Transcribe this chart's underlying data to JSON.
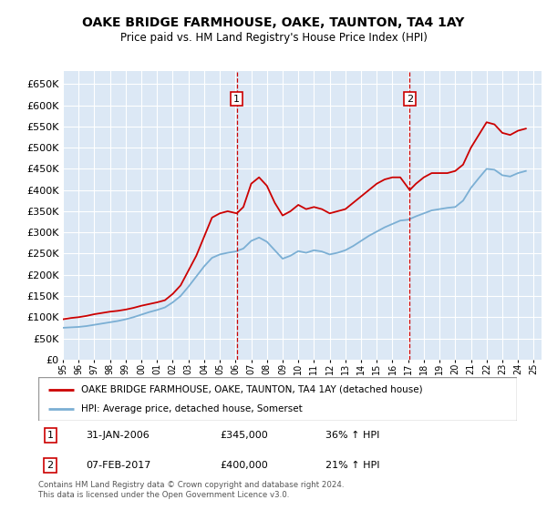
{
  "title": "OAKE BRIDGE FARMHOUSE, OAKE, TAUNTON, TA4 1AY",
  "subtitle": "Price paid vs. HM Land Registry's House Price Index (HPI)",
  "bg_color": "#dce8f5",
  "ylim": [
    0,
    680000
  ],
  "yticks": [
    0,
    50000,
    100000,
    150000,
    200000,
    250000,
    300000,
    350000,
    400000,
    450000,
    500000,
    550000,
    600000,
    650000
  ],
  "red_line_color": "#cc0000",
  "blue_line_color": "#7bafd4",
  "marker1_x": 2006.08,
  "marker2_x": 2017.1,
  "legend_label_red": "OAKE BRIDGE FARMHOUSE, OAKE, TAUNTON, TA4 1AY (detached house)",
  "legend_label_blue": "HPI: Average price, detached house, Somerset",
  "table_row1": [
    "1",
    "31-JAN-2006",
    "£345,000",
    "36% ↑ HPI"
  ],
  "table_row2": [
    "2",
    "07-FEB-2017",
    "£400,000",
    "21% ↑ HPI"
  ],
  "footer": "Contains HM Land Registry data © Crown copyright and database right 2024.\nThis data is licensed under the Open Government Licence v3.0.",
  "red_hpi_data": {
    "years": [
      1995,
      1995.5,
      1996,
      1996.5,
      1997,
      1997.5,
      1998,
      1998.5,
      1999,
      1999.5,
      2000,
      2000.5,
      2001,
      2001.5,
      2002,
      2002.5,
      2003,
      2003.5,
      2004,
      2004.5,
      2005,
      2005.5,
      2006.08,
      2006.5,
      2007,
      2007.5,
      2008,
      2008.5,
      2009,
      2009.5,
      2010,
      2010.5,
      2011,
      2011.5,
      2012,
      2012.5,
      2013,
      2013.5,
      2014,
      2014.5,
      2015,
      2015.5,
      2016,
      2016.5,
      2017.1,
      2017.5,
      2018,
      2018.5,
      2019,
      2019.5,
      2020,
      2020.5,
      2021,
      2021.5,
      2022,
      2022.5,
      2023,
      2023.5,
      2024,
      2024.5
    ],
    "values": [
      95000,
      98000,
      100000,
      103000,
      107000,
      110000,
      113000,
      115000,
      118000,
      122000,
      127000,
      131000,
      135000,
      140000,
      155000,
      175000,
      210000,
      245000,
      290000,
      335000,
      345000,
      350000,
      345000,
      360000,
      415000,
      430000,
      410000,
      370000,
      340000,
      350000,
      365000,
      355000,
      360000,
      355000,
      345000,
      350000,
      355000,
      370000,
      385000,
      400000,
      415000,
      425000,
      430000,
      430000,
      400000,
      415000,
      430000,
      440000,
      440000,
      440000,
      445000,
      460000,
      500000,
      530000,
      560000,
      555000,
      535000,
      530000,
      540000,
      545000
    ]
  },
  "blue_hpi_data": {
    "years": [
      1995,
      1995.5,
      1996,
      1996.5,
      1997,
      1997.5,
      1998,
      1998.5,
      1999,
      1999.5,
      2000,
      2000.5,
      2001,
      2001.5,
      2002,
      2002.5,
      2003,
      2003.5,
      2004,
      2004.5,
      2005,
      2005.5,
      2006,
      2006.5,
      2007,
      2007.5,
      2008,
      2008.5,
      2009,
      2009.5,
      2010,
      2010.5,
      2011,
      2011.5,
      2012,
      2012.5,
      2013,
      2013.5,
      2014,
      2014.5,
      2015,
      2015.5,
      2016,
      2016.5,
      2017,
      2017.5,
      2018,
      2018.5,
      2019,
      2019.5,
      2020,
      2020.5,
      2021,
      2021.5,
      2022,
      2022.5,
      2023,
      2023.5,
      2024,
      2024.5
    ],
    "values": [
      75000,
      76000,
      77000,
      79000,
      82000,
      85000,
      88000,
      91000,
      95000,
      100000,
      106000,
      112000,
      117000,
      123000,
      135000,
      150000,
      172000,
      196000,
      220000,
      240000,
      248000,
      252000,
      255000,
      262000,
      280000,
      288000,
      278000,
      258000,
      238000,
      245000,
      256000,
      252000,
      258000,
      255000,
      248000,
      252000,
      258000,
      268000,
      280000,
      292000,
      302000,
      312000,
      320000,
      328000,
      330000,
      338000,
      345000,
      352000,
      355000,
      358000,
      360000,
      375000,
      405000,
      428000,
      450000,
      448000,
      435000,
      432000,
      440000,
      445000
    ]
  }
}
